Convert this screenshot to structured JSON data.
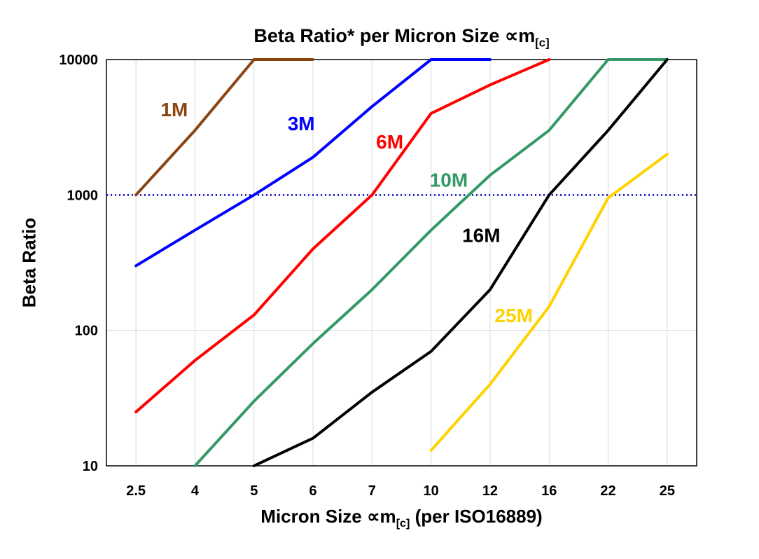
{
  "title": {
    "prefix": "Beta Ratio* per Micron Size ",
    "symbol": "∝m",
    "sub": "[c]"
  },
  "axes": {
    "y_label": "Beta Ratio",
    "x_label": {
      "prefix": "Micron Size ",
      "symbol": "∝m",
      "sub": "[c]",
      "suffix": " (per ISO16889)"
    },
    "y_ticks": [
      "10000",
      "1000",
      "100",
      "10"
    ],
    "x_ticks": [
      "2.5",
      "4",
      "5",
      "6",
      "7",
      "10",
      "12",
      "16",
      "22",
      "25"
    ]
  },
  "colors": {
    "gridline": "#d9d9d9",
    "border": "#000000",
    "reference": "#0000cc"
  },
  "chart_data": {
    "type": "line",
    "title": "Beta Ratio* per Micron Size ∝m[c]",
    "xlabel": "Micron Size ∝m[c] (per ISO16889)",
    "ylabel": "Beta Ratio",
    "x_scale": "categorical",
    "y_scale": "log",
    "ylim": [
      10,
      10000
    ],
    "grid": true,
    "legend": "inline-labels",
    "categories": [
      "2.5",
      "4",
      "5",
      "6",
      "7",
      "10",
      "12",
      "16",
      "22",
      "25"
    ],
    "reference_line": {
      "value": 1000,
      "color": "#0000cc",
      "style": "dotted"
    },
    "series": [
      {
        "name": "1M",
        "color": "#8B4513",
        "values": [
          1000,
          3000,
          10000,
          10000,
          null,
          null,
          null,
          null,
          null,
          null
        ],
        "label": {
          "i": 0.65,
          "v": 3800
        }
      },
      {
        "name": "3M",
        "color": "#0000FF",
        "values": [
          300,
          550,
          1000,
          1900,
          4500,
          10000,
          10000,
          null,
          null,
          null
        ],
        "label": {
          "i": 2.8,
          "v": 3000
        }
      },
      {
        "name": "6M",
        "color": "#FF0000",
        "values": [
          25,
          60,
          130,
          400,
          1000,
          4000,
          6500,
          10000,
          null,
          null
        ],
        "label": {
          "i": 4.3,
          "v": 2200
        }
      },
      {
        "name": "10M",
        "color": "#339966",
        "values": [
          null,
          10,
          30,
          80,
          200,
          550,
          1400,
          3000,
          10000,
          10000
        ],
        "label": {
          "i": 5.3,
          "v": 1150
        }
      },
      {
        "name": "16M",
        "color": "#000000",
        "values": [
          null,
          null,
          10,
          16,
          35,
          70,
          200,
          1000,
          3000,
          10000
        ],
        "label": {
          "i": 5.85,
          "v": 450
        }
      },
      {
        "name": "25M",
        "color": "#FFD200",
        "values": [
          null,
          null,
          null,
          null,
          null,
          13,
          40,
          150,
          950,
          2000
        ],
        "label": {
          "i": 6.4,
          "v": 115
        }
      }
    ]
  }
}
